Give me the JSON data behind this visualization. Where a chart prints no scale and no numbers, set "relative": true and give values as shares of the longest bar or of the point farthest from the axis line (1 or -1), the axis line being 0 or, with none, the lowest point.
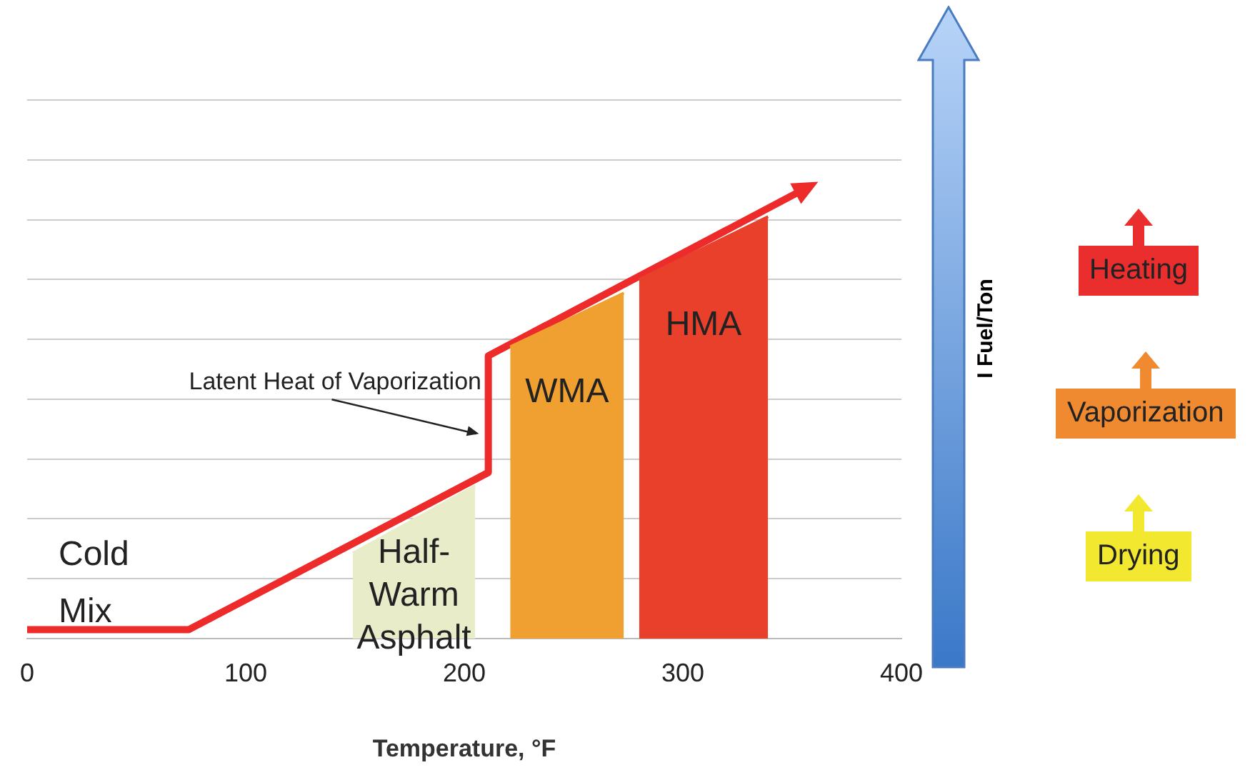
{
  "chart_data": {
    "type": "line",
    "relative": true,
    "xlabel": "Temperature, °F",
    "ylabel": "I Fuel/Ton",
    "xlim": [
      0,
      400
    ],
    "xticks": [
      0,
      100,
      200,
      300,
      400
    ],
    "grid": "y",
    "legend": false,
    "series": [
      {
        "type": "area",
        "name": "Half-Warm Asphalt",
        "color": "#e8ecc8",
        "x": [
          149,
          205
        ],
        "values": [
          0.19,
          0.34
        ]
      },
      {
        "type": "area",
        "name": "WMA",
        "color": "#f0a030",
        "x": [
          221,
          273
        ],
        "values": [
          0.65,
          0.77
        ]
      },
      {
        "type": "area",
        "name": "HMA",
        "color": "#e8402a",
        "x": [
          280,
          339
        ],
        "values": [
          0.8,
          0.94
        ]
      },
      {
        "color": "#ee2b2b",
        "x": [
          0,
          74,
          211,
          211,
          355
        ],
        "values": [
          0.02,
          0.02,
          0.37,
          0.63,
          1
        ]
      }
    ],
    "annotations": [
      {
        "text": "Cold Mix",
        "x": 0,
        "y": 0.02
      },
      {
        "text": "Latent Heat of Vaporization",
        "x": 208,
        "y": 0.45
      },
      "Heating",
      "Vaporization",
      "Drying"
    ]
  }
}
